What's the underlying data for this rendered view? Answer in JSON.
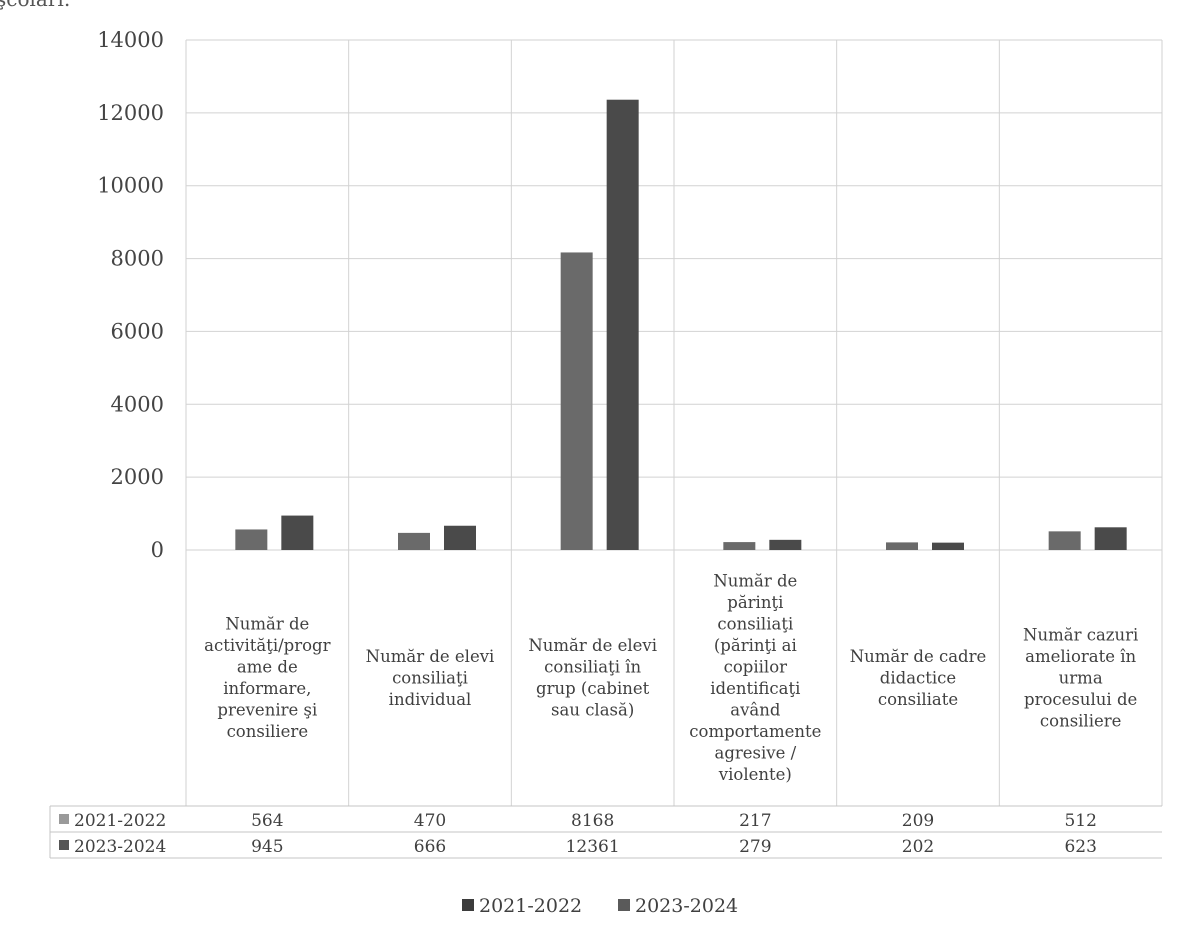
{
  "header_fragment": "şcolari:",
  "chart_data": {
    "type": "bar",
    "categories": [
      "Număr de activităţi/programe de informare, prevenire şi consiliere",
      "Număr de elevi consiliaţi individual",
      "Număr de elevi consiliaţi în grup (cabinet sau clasă)",
      "Număr de părinţi consiliaţi (părinţi ai copiilor identificaţi având comportamente agresive / violente)",
      "Număr de cadre didactice consiliate",
      "Număr cazuri ameliorate în urma procesului de consiliere"
    ],
    "category_lines": [
      [
        "Număr de",
        "activităţi/progr",
        "ame de",
        "informare,",
        "prevenire şi",
        "consiliere"
      ],
      [
        "Număr de elevi",
        "consiliaţi",
        "individual"
      ],
      [
        "Număr de elevi",
        "consiliaţi în",
        "grup (cabinet",
        "sau clasă)"
      ],
      [
        "Număr de",
        "părinţi",
        "consiliaţi",
        "(părinţi ai",
        "copiilor",
        "identificaţi",
        "având",
        "comportamente",
        "agresive /",
        "violente)"
      ],
      [
        "Număr de cadre",
        "didactice",
        "consiliate"
      ],
      [
        "Număr cazuri",
        "ameliorate în",
        "urma",
        "procesului de",
        "consiliere"
      ]
    ],
    "series": [
      {
        "name": "2021-2022",
        "values": [
          564,
          470,
          8168,
          217,
          209,
          512
        ],
        "color": "#6a6a6a"
      },
      {
        "name": "2023-2024",
        "values": [
          945,
          666,
          12361,
          279,
          202,
          623
        ],
        "color": "#4a4a4a"
      }
    ],
    "table_values": {
      "2021-2022": [
        "564",
        "470",
        "8168",
        "217",
        "209",
        "512"
      ],
      "2023-2024": [
        "945",
        "666",
        "12361",
        "279",
        "202",
        "623"
      ]
    },
    "y_ticks": [
      "0",
      "2000",
      "4000",
      "6000",
      "8000",
      "10000",
      "12000",
      "14000"
    ],
    "ylim": [
      0,
      14000
    ],
    "grid": true,
    "legend_position": "bottom",
    "title": "",
    "xlabel": "",
    "ylabel": ""
  }
}
